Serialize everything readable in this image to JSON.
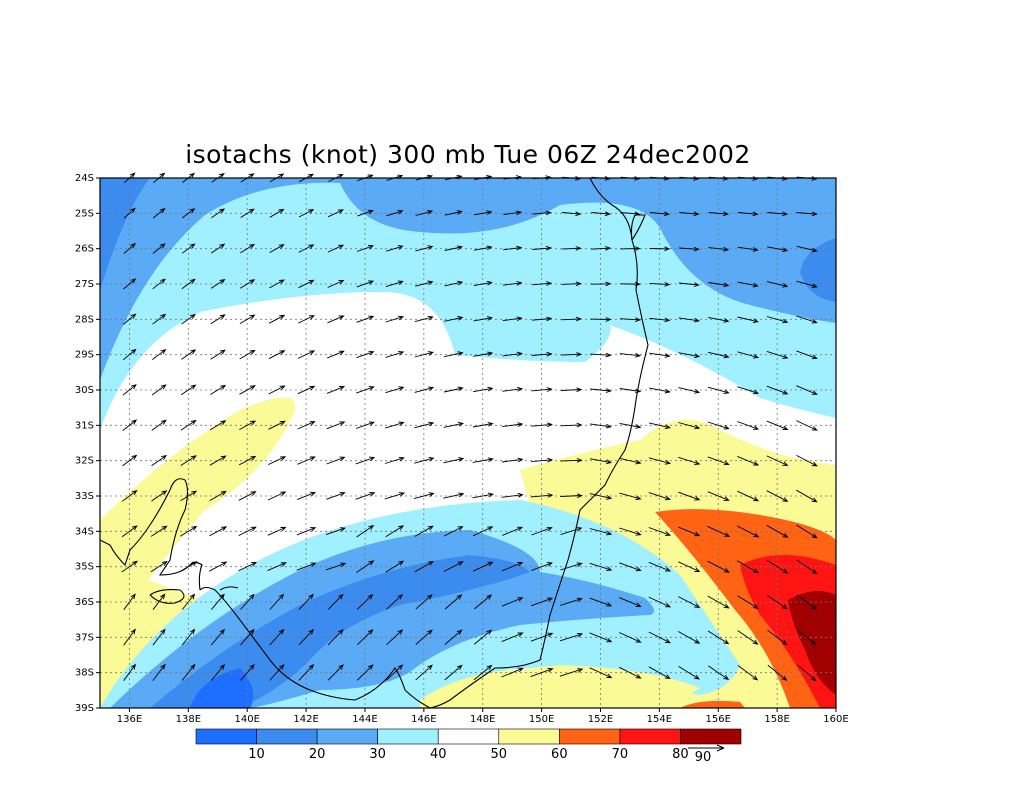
{
  "title": "isotachs (knot) 300 mb Tue 06Z 24dec2002",
  "lat_labels": [
    "24S",
    "25S",
    "26S",
    "27S",
    "28S",
    "29S",
    "30S",
    "31S",
    "32S",
    "33S",
    "34S",
    "35S",
    "36S",
    "37S",
    "38S",
    "39S"
  ],
  "lon_labels": [
    "136E",
    "138E",
    "140E",
    "142E",
    "144E",
    "146E",
    "148E",
    "150E",
    "152E",
    "154E",
    "156E",
    "158E",
    "160E"
  ],
  "colorbar": {
    "colors": [
      "#1e6eff",
      "#3c8cf0",
      "#5aaaf5",
      "#a0f0ff",
      "#ffffff",
      "#fafa96",
      "#ff6414",
      "#ff1414",
      "#a00000"
    ],
    "labels": [
      "10",
      "20",
      "30",
      "40",
      "50",
      "60",
      "70",
      "80",
      "90"
    ]
  },
  "legend_vector": {
    "icon": "reference-arrow-icon"
  },
  "colors": {
    "c10": "#1e6eff",
    "c20": "#3c8cf0",
    "c30": "#5aaaf5",
    "c40": "#a0f0ff",
    "c50": "#ffffff",
    "c60": "#fafa96",
    "c70": "#ff6414",
    "c80": "#ff1414",
    "c90": "#a00000"
  }
}
